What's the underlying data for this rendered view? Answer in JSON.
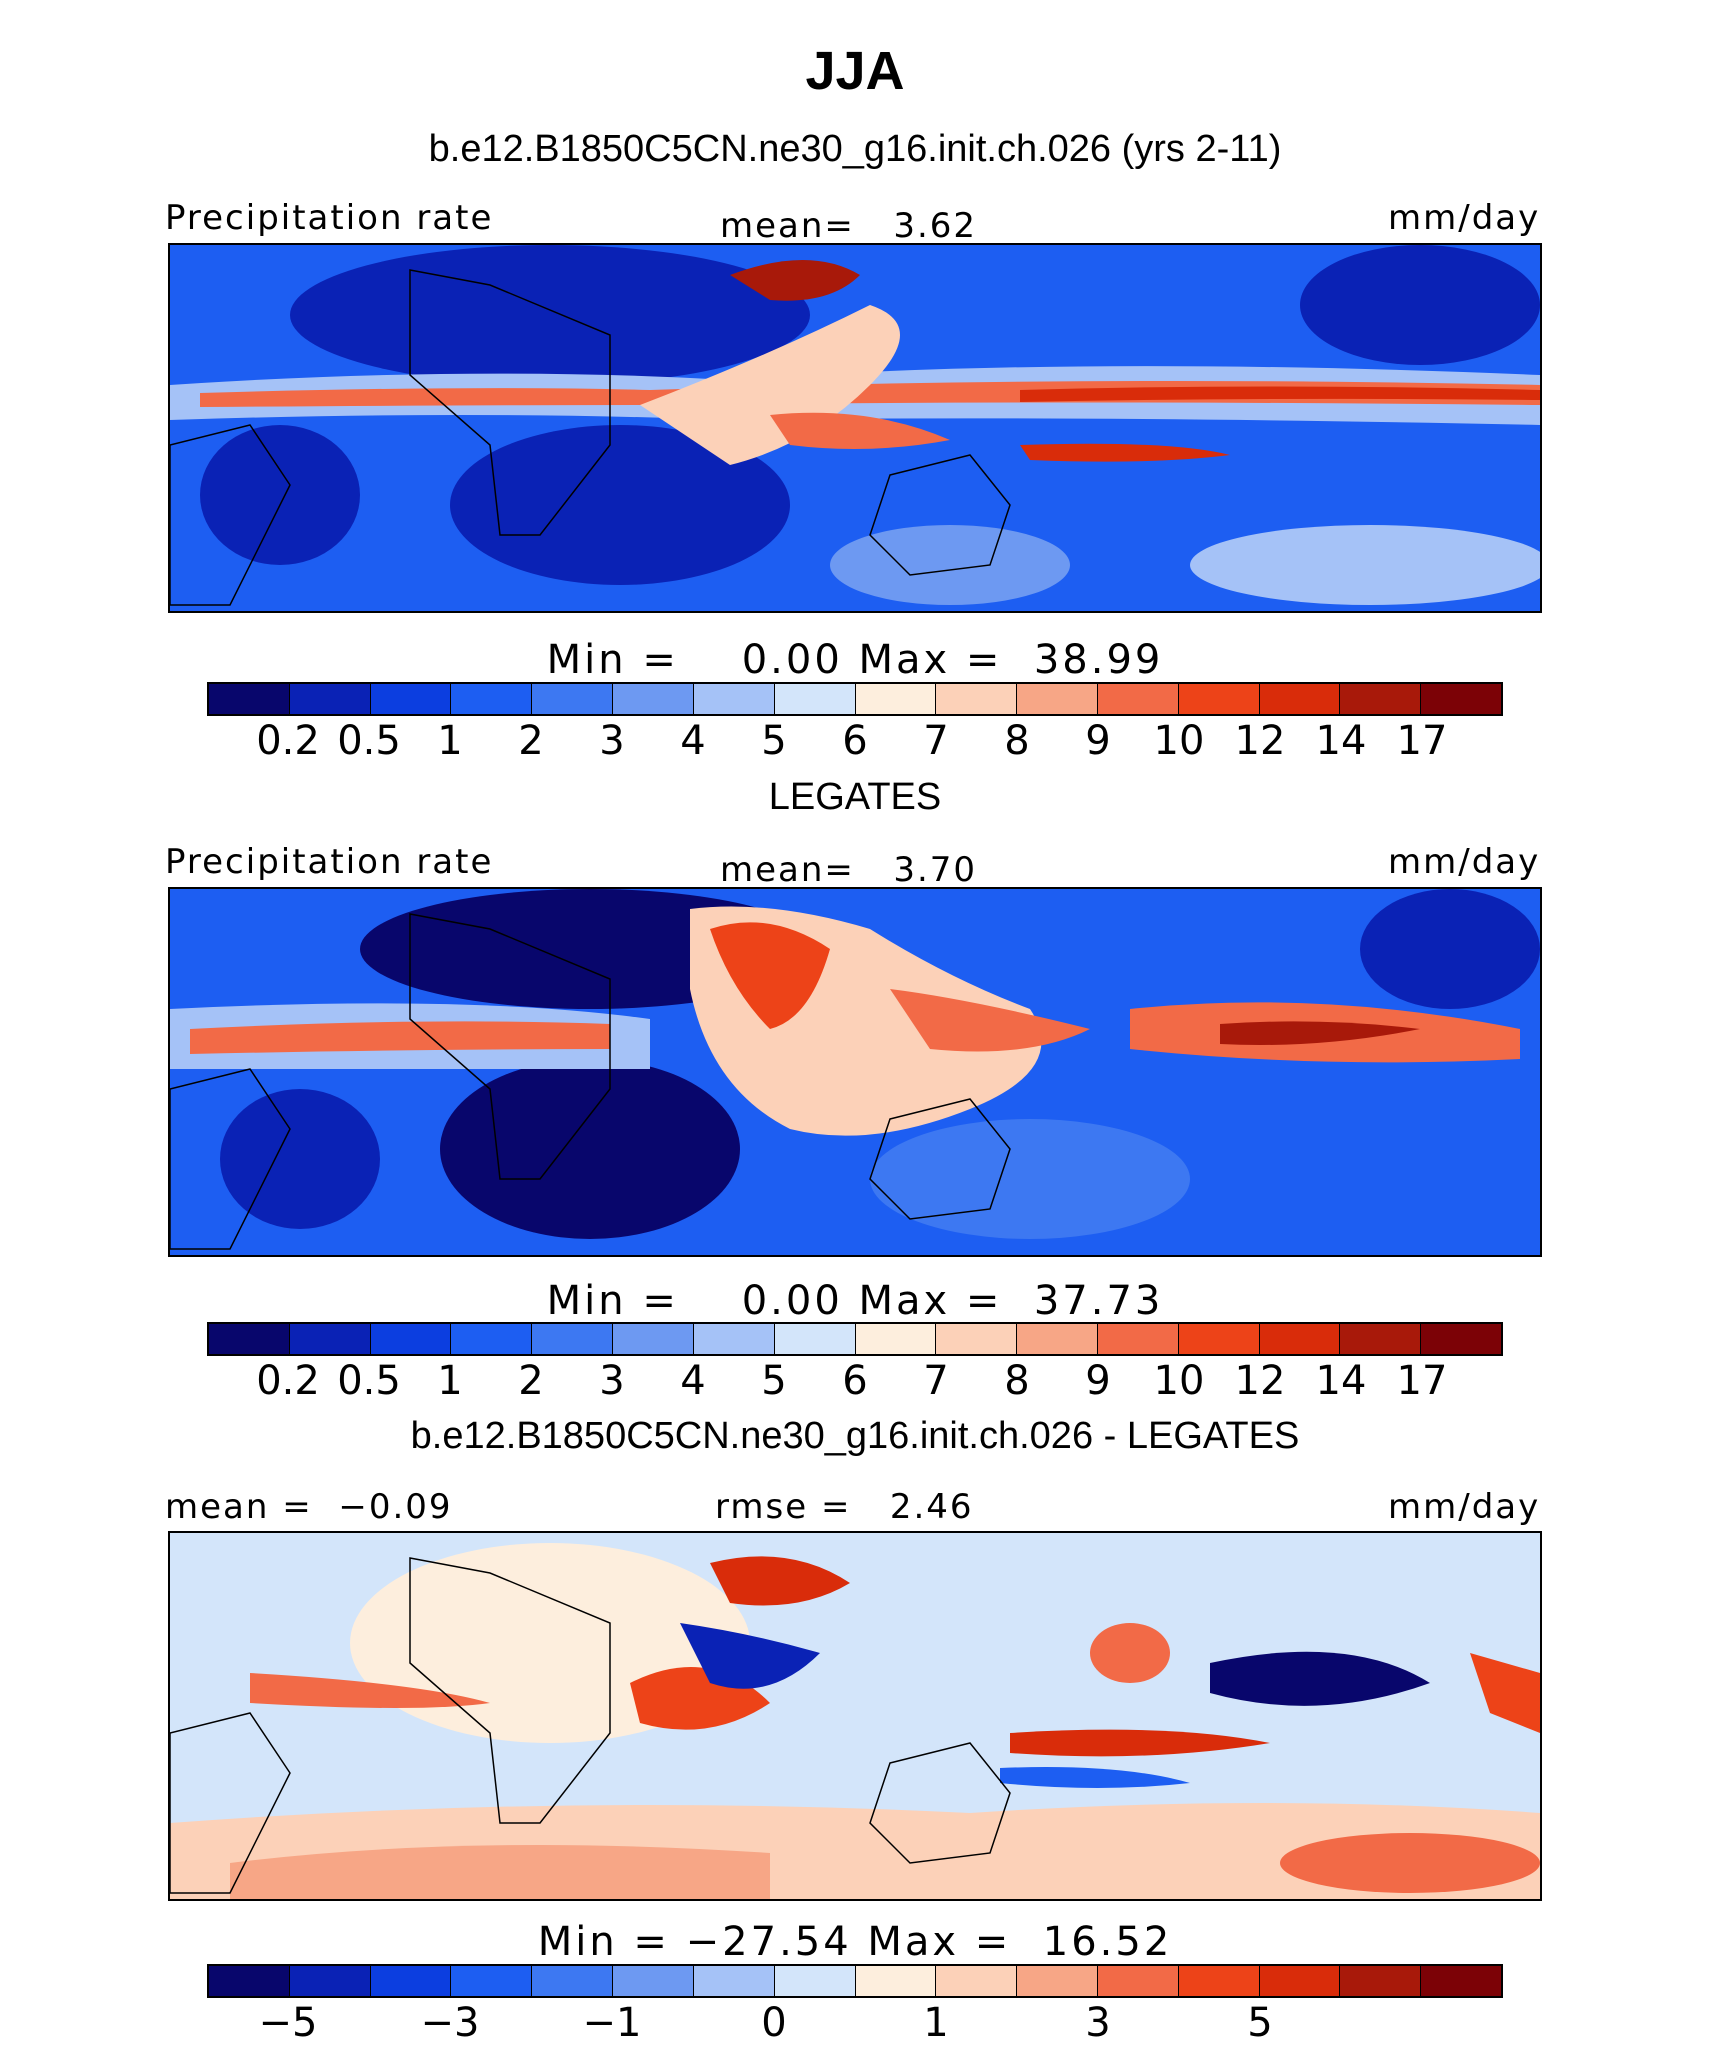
{
  "title": "JJA",
  "colors": {
    "scale": [
      "#08066c",
      "#0a22b5",
      "#0c3ee0",
      "#1d5ef2",
      "#3d78f2",
      "#6d99f2",
      "#a5c2f7",
      "#d3e5fa",
      "#fdeedd",
      "#fcd1b8",
      "#f7a686",
      "#f26a47",
      "#ed4318",
      "#d92c0a",
      "#a8190a",
      "#7c0206"
    ],
    "land_outline": "#000000"
  },
  "panels": [
    {
      "title": "b.e12.B1850C5CN.ne30_g16.init.ch.026 (yrs 2-11)",
      "left_label": "Precipitation rate",
      "center_label": "mean=   3.62",
      "right_label": "mm/day",
      "minmax": "Min =    0.00 Max =  38.99",
      "ticks": [
        "0.2",
        "0.5",
        "1",
        "2",
        "3",
        "4",
        "5",
        "6",
        "7",
        "8",
        "9",
        "10",
        "12",
        "14",
        "17"
      ]
    },
    {
      "title": "LEGATES",
      "left_label": "Precipitation rate",
      "center_label": "mean=   3.70",
      "right_label": "mm/day",
      "minmax": "Min =    0.00 Max =  37.73",
      "ticks": [
        "0.2",
        "0.5",
        "1",
        "2",
        "3",
        "4",
        "5",
        "6",
        "7",
        "8",
        "9",
        "10",
        "12",
        "14",
        "17"
      ]
    },
    {
      "title": "b.e12.B1850C5CN.ne30_g16.init.ch.026 - LEGATES",
      "left_label": "mean =  −0.09",
      "center_label": "rmse =   2.46",
      "right_label": "mm/day",
      "minmax": "Min = −27.54 Max =  16.52",
      "ticks": [
        "−5",
        "",
        "−3",
        "",
        "−1",
        "",
        "0",
        "",
        "1",
        "",
        "3",
        "",
        "5",
        "",
        ""
      ]
    }
  ]
}
